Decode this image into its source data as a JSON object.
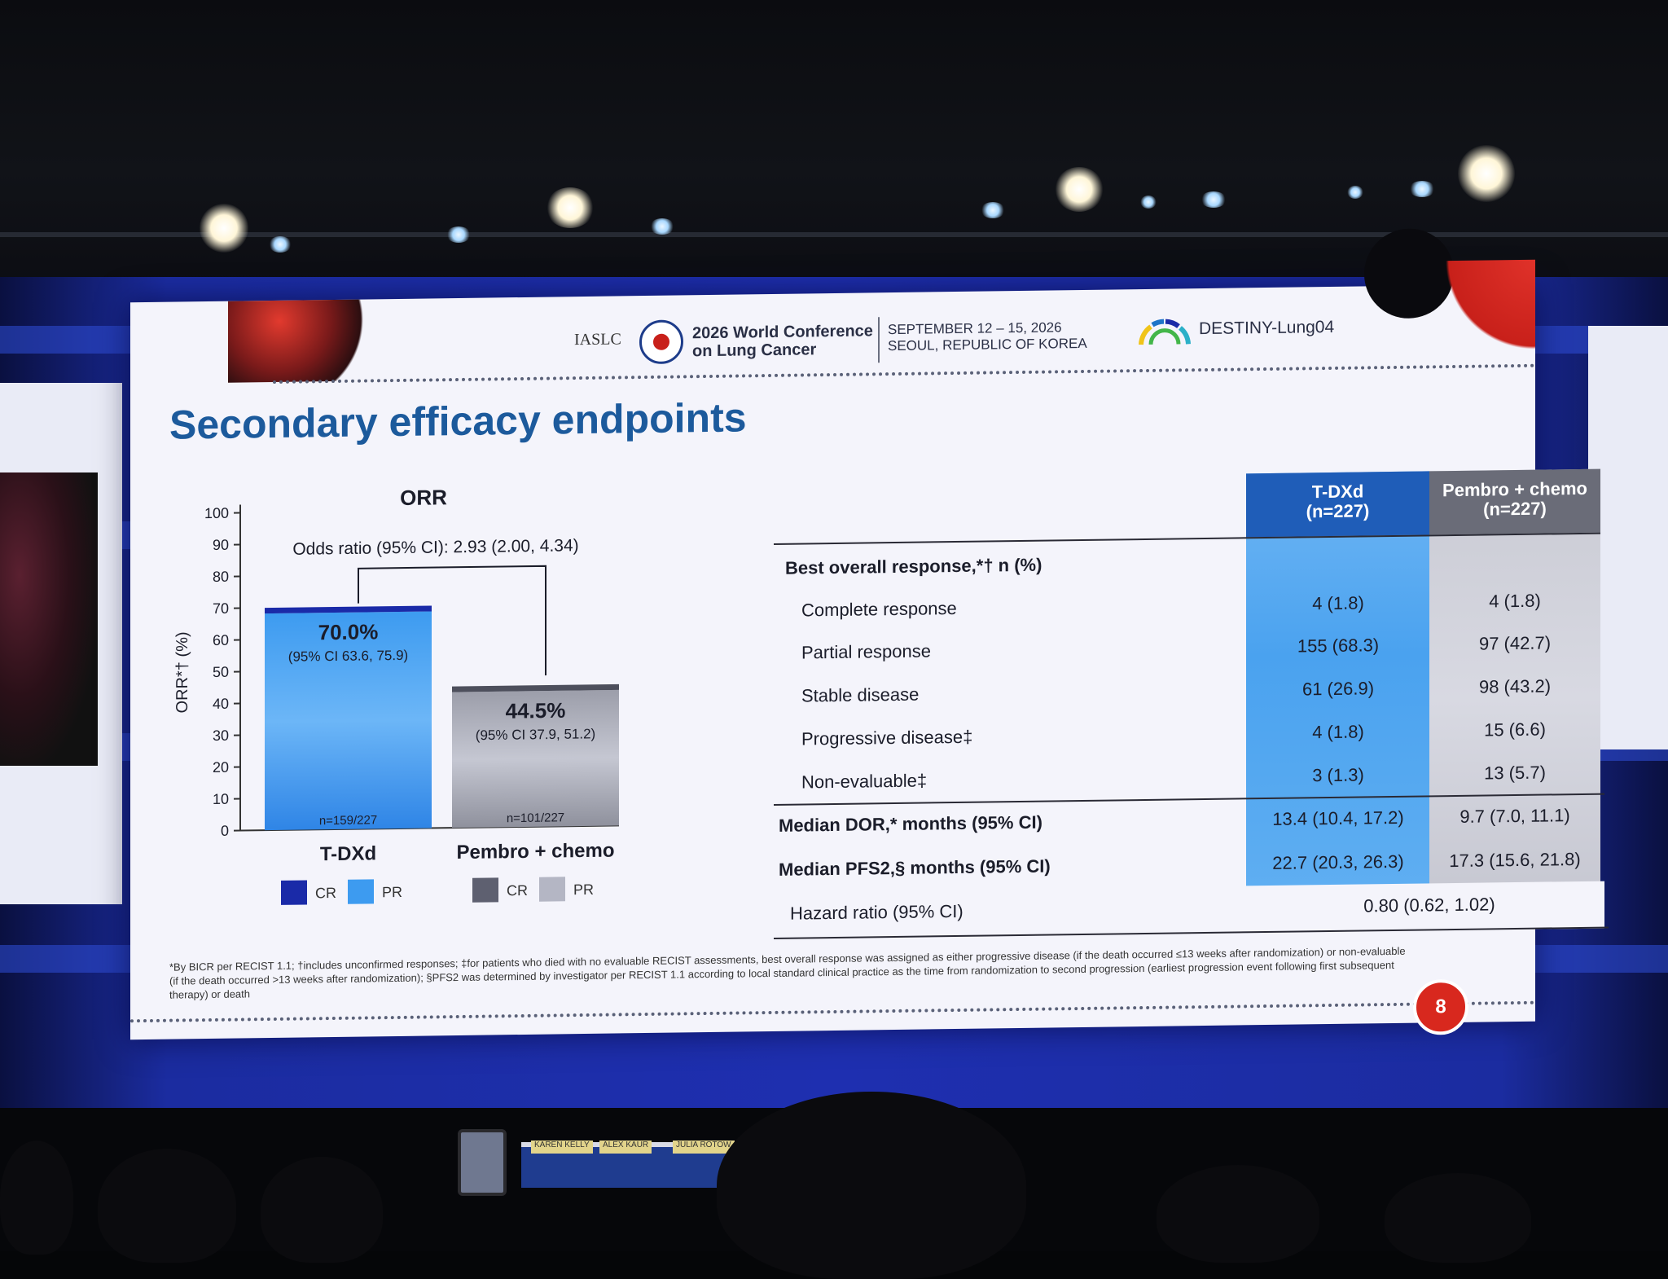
{
  "header": {
    "iaslc": "IASLC",
    "conference": "2026 World Conference on Lung Cancer",
    "dates": "SEPTEMBER 12 – 15, 2026",
    "location": "SEOUL, REPUBLIC OF KOREA",
    "trial": "DESTINY-Lung04"
  },
  "slide": {
    "title": "Secondary efficacy endpoints",
    "page_number": "8",
    "footnote": "*By BICR per RECIST 1.1; †includes unconfirmed responses; ‡for patients who died with no evaluable RECIST assessments, best overall response was assigned as either progressive disease (if the death occurred ≤13 weeks after randomization) or non-evaluable (if the death occurred >13 weeks after randomization); §PFS2 was determined by investigator per RECIST 1.1 according to local standard clinical practice as the time from randomization to second progression (earliest progression event following first subsequent therapy) or death"
  },
  "chart_data": {
    "type": "bar",
    "title": "ORR",
    "ylabel": "ORR*† (%)",
    "ylim": [
      0,
      100
    ],
    "yticks": [
      0,
      10,
      20,
      30,
      40,
      50,
      60,
      70,
      80,
      90,
      100
    ],
    "annotation": "Odds ratio (95% CI): 2.93 (2.00, 4.34)",
    "categories": [
      "T-DXd",
      "Pembro + chemo"
    ],
    "values": [
      70.0,
      44.5
    ],
    "cr": [
      1.8,
      1.8
    ],
    "value_labels": [
      "70.0%",
      "44.5%"
    ],
    "ci_labels": [
      "(95% CI 63.6, 75.9)",
      "(95% CI 37.9, 51.2)"
    ],
    "n_labels": [
      "n=159/227",
      "n=101/227"
    ],
    "legend": [
      {
        "cr_label": "CR",
        "pr_label": "PR",
        "cr_color": "#1a2aa8",
        "pr_color": "#3d9bf0"
      },
      {
        "cr_label": "CR",
        "pr_label": "PR",
        "cr_color": "#5e6070",
        "pr_color": "#b4b6c4"
      }
    ],
    "colors": {
      "tdxd_cr": "#1a2aa8",
      "tdxd_pr": "#3d9bf0",
      "pem_cr": "#4d4f5c",
      "pem_pr": "#b4b6c4"
    }
  },
  "table": {
    "columns": [
      {
        "name": "T-DXd",
        "n": "(n=227)",
        "color": "#1f5db8"
      },
      {
        "name": "Pembro + chemo",
        "n": "(n=227)",
        "color": "#6a6c78"
      }
    ],
    "section_label": "Best overall response,*† n (%)",
    "response_rows": [
      {
        "label": "Complete response",
        "tdxd": "4 (1.8)",
        "pem": "4 (1.8)"
      },
      {
        "label": "Partial response",
        "tdxd": "155 (68.3)",
        "pem": "97 (42.7)"
      },
      {
        "label": "Stable disease",
        "tdxd": "61 (26.9)",
        "pem": "98 (43.2)"
      },
      {
        "label": "Progressive disease‡",
        "tdxd": "4 (1.8)",
        "pem": "15 (6.6)"
      },
      {
        "label": "Non-evaluable‡",
        "tdxd": "3 (1.3)",
        "pem": "13 (5.7)"
      }
    ],
    "dor": {
      "label": "Median DOR,* months (95% CI)",
      "tdxd": "13.4 (10.4, 17.2)",
      "pem": "9.7 (7.0, 11.1)"
    },
    "pfs2": {
      "label": "Median PFS2,§ months (95% CI)",
      "tdxd": "22.7 (20.3, 26.3)",
      "pem": "17.3 (15.6, 21.8)"
    },
    "hazard": {
      "label": "Hazard ratio (95% CI)",
      "value": "0.80 (0.62, 1.02)"
    }
  },
  "stage": {
    "nameplates": [
      "KAREN KELLY",
      "ALEX KAUR",
      "JULIA ROTOW"
    ]
  }
}
